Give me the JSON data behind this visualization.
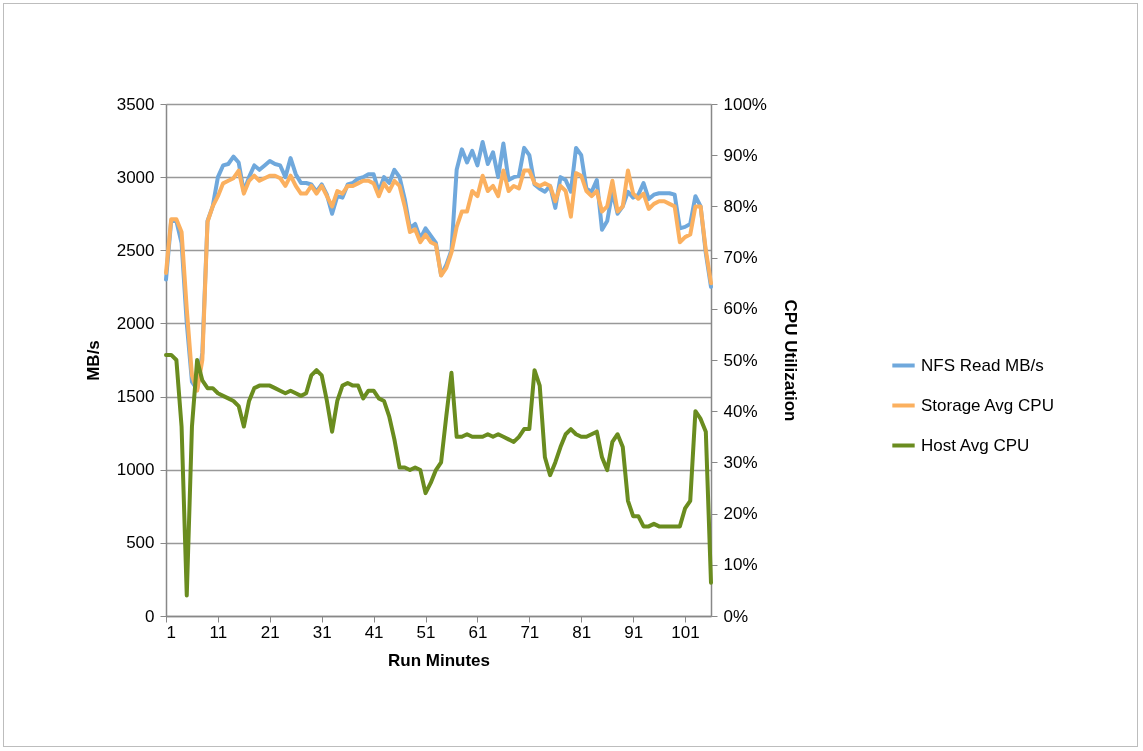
{
  "chart_data": {
    "type": "line",
    "xlabel": "Run Minutes",
    "ylabel": "MB/s",
    "y2label": "CPU Utilization",
    "x": [
      1,
      2,
      3,
      4,
      5,
      6,
      7,
      8,
      9,
      10,
      11,
      12,
      13,
      14,
      15,
      16,
      17,
      18,
      19,
      20,
      21,
      22,
      23,
      24,
      25,
      26,
      27,
      28,
      29,
      30,
      31,
      32,
      33,
      34,
      35,
      36,
      37,
      38,
      39,
      40,
      41,
      42,
      43,
      44,
      45,
      46,
      47,
      48,
      49,
      50,
      51,
      52,
      53,
      54,
      55,
      56,
      57,
      58,
      59,
      60,
      61,
      62,
      63,
      64,
      65,
      66,
      67,
      68,
      69,
      70,
      71,
      72,
      73,
      74,
      75,
      76,
      77,
      78,
      79,
      80,
      81,
      82,
      83,
      84,
      85,
      86,
      87,
      88,
      89,
      90,
      91,
      92,
      93,
      94,
      95,
      96,
      97,
      98,
      99,
      100,
      101,
      102,
      103,
      104,
      105,
      106
    ],
    "xlim": [
      1,
      106
    ],
    "xticks": [
      1,
      11,
      21,
      31,
      41,
      51,
      61,
      71,
      81,
      91,
      101
    ],
    "ylim": [
      0,
      3500
    ],
    "yticks": [
      0,
      500,
      1000,
      1500,
      2000,
      2500,
      3000,
      3500
    ],
    "y2lim": [
      0,
      100
    ],
    "y2ticks": [
      {
        "value": 0,
        "label": "0%"
      },
      {
        "value": 10,
        "label": "10%"
      },
      {
        "value": 20,
        "label": "20%"
      },
      {
        "value": 30,
        "label": "30%"
      },
      {
        "value": 40,
        "label": "40%"
      },
      {
        "value": 50,
        "label": "50%"
      },
      {
        "value": 60,
        "label": "60%"
      },
      {
        "value": 70,
        "label": "70%"
      },
      {
        "value": 80,
        "label": "80%"
      },
      {
        "value": 90,
        "label": "90%"
      },
      {
        "value": 100,
        "label": "100%"
      }
    ],
    "grid": "y",
    "legend": "right",
    "line_style": "solid",
    "marker": "none",
    "series": [
      {
        "name": "NFS Read MB/s",
        "color": "#6fa8dc",
        "values": [
          2300,
          2700,
          2700,
          2550,
          2000,
          1600,
          1550,
          1800,
          2700,
          2800,
          3000,
          3080,
          3090,
          3140,
          3100,
          2900,
          3000,
          3080,
          3050,
          3080,
          3110,
          3090,
          3080,
          3000,
          3130,
          3020,
          2960,
          2960,
          2950,
          2900,
          2950,
          2880,
          2750,
          2870,
          2860,
          2950,
          2960,
          2990,
          3000,
          3020,
          3020,
          2900,
          3000,
          2960,
          3050,
          3000,
          2850,
          2650,
          2680,
          2580,
          2650,
          2600,
          2550,
          2330,
          2400,
          2500,
          3050,
          3190,
          3100,
          3180,
          3080,
          3240,
          3090,
          3170,
          3000,
          3230,
          2980,
          3000,
          3010,
          3200,
          3150,
          2950,
          2920,
          2900,
          2940,
          2790,
          3000,
          2980,
          2900,
          3200,
          3150,
          2920,
          2900,
          2980,
          2640,
          2700,
          2900,
          2750,
          2800,
          2900,
          2860,
          2880,
          2960,
          2850,
          2880,
          2890,
          2890,
          2890,
          2880,
          2650,
          2660,
          2680,
          2870,
          2800,
          2480,
          2250
        ]
      },
      {
        "name": "Storage Avg CPU",
        "color": "#fbb05f",
        "axis": "y2",
        "values": [
          67,
          77.5,
          77.5,
          75,
          60,
          47,
          44,
          50,
          77,
          80,
          82,
          84.5,
          85,
          85.5,
          87,
          82.5,
          85,
          86,
          85,
          85.5,
          86,
          86,
          85.5,
          84,
          86,
          84,
          82.5,
          82.5,
          84,
          82.5,
          84,
          82,
          80,
          83,
          82.5,
          84,
          84,
          84.5,
          85,
          85,
          84.5,
          82,
          84.5,
          83,
          85,
          84,
          80,
          75,
          75.5,
          73,
          74.5,
          73,
          72.5,
          66.5,
          68,
          71,
          76,
          79,
          79,
          83,
          82,
          86,
          83,
          84,
          82,
          87,
          83,
          84,
          83.5,
          87,
          87,
          84.5,
          84,
          84.5,
          84,
          81,
          84,
          83,
          78,
          86.5,
          86,
          83,
          82,
          83,
          79,
          80,
          85,
          79,
          80,
          87,
          82.5,
          81.5,
          82.5,
          79.5,
          80.5,
          81,
          81,
          80.5,
          80,
          73,
          74,
          74.5,
          80,
          80,
          71.5,
          65
        ]
      },
      {
        "name": "Host Avg CPU",
        "color": "#6a8c1f",
        "axis": "y2",
        "values": [
          51,
          51,
          50,
          37,
          4,
          37,
          50,
          46,
          44.5,
          44.5,
          43.5,
          43,
          42.5,
          42,
          41,
          37,
          42,
          44.5,
          45,
          45,
          45,
          44.5,
          44,
          43.5,
          44,
          43.5,
          43,
          43.5,
          47,
          48,
          47,
          42,
          36,
          42,
          45,
          45.5,
          45,
          45,
          42.5,
          44,
          44,
          42.5,
          42,
          39,
          34.5,
          29,
          29,
          28.5,
          29,
          28.5,
          24,
          26,
          28.5,
          30,
          39,
          47.5,
          35,
          35,
          35.5,
          35,
          35,
          35,
          35.5,
          35,
          35.5,
          35,
          34.5,
          34,
          35,
          36.5,
          36.5,
          48,
          45,
          31,
          27.5,
          30,
          33,
          35.5,
          36.5,
          35.5,
          35,
          35,
          35.5,
          36,
          31,
          28.5,
          34,
          35.5,
          33,
          22.5,
          19.5,
          19.5,
          17.5,
          17.5,
          18,
          17.5,
          17.5,
          17.5,
          17.5,
          17.5,
          21,
          22.5,
          40,
          38.5,
          36,
          6.5
        ]
      }
    ]
  }
}
